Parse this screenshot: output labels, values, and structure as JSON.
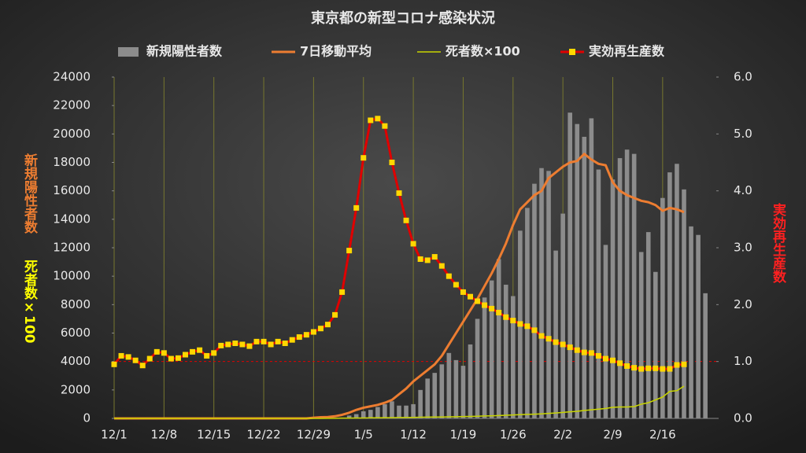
{
  "chart_data": {
    "type": "combo",
    "title": "東京都の新型コロナ感染状況",
    "ylabels": [
      "新規陽性者数",
      "死者数×100"
    ],
    "y2label": "実効再生産数",
    "categories": [
      "12/1",
      null,
      null,
      null,
      null,
      null,
      null,
      "12/8",
      null,
      null,
      null,
      null,
      null,
      null,
      "12/15",
      null,
      null,
      null,
      null,
      null,
      null,
      "12/22",
      null,
      null,
      null,
      null,
      null,
      null,
      "12/29",
      null,
      null,
      null,
      null,
      null,
      null,
      "1/5",
      null,
      null,
      null,
      null,
      null,
      null,
      "1/12",
      null,
      null,
      null,
      null,
      null,
      null,
      "1/19",
      null,
      null,
      null,
      null,
      null,
      null,
      "1/26",
      null,
      null,
      null,
      null,
      null,
      null,
      "2/2",
      null,
      null,
      null,
      null,
      null,
      null,
      "2/9",
      null,
      null,
      null,
      null,
      null,
      null,
      "2/16",
      null,
      null,
      null,
      null,
      null,
      null
    ],
    "ylim": [
      0,
      24000
    ],
    "yticks": [
      0,
      2000,
      4000,
      6000,
      8000,
      10000,
      12000,
      14000,
      16000,
      18000,
      20000,
      22000,
      24000
    ],
    "y2lim": [
      0,
      6
    ],
    "y2ticks": [
      {
        "value": 0,
        "label": "0.0"
      },
      {
        "value": 1,
        "label": "1.0"
      },
      {
        "value": 2,
        "label": "2.0"
      },
      {
        "value": 3,
        "label": "3.0"
      },
      {
        "value": 4,
        "label": "4.0"
      },
      {
        "value": 5,
        "label": "5.0"
      },
      {
        "value": 6,
        "label": "6.0"
      }
    ],
    "y2_reference": 1,
    "x_grid": true,
    "series": [
      {
        "name": "新規陽性者数",
        "kind": "bar",
        "color": "#8c8c8c",
        "values": [
          0,
          0,
          0,
          0,
          0,
          0,
          0,
          0,
          0,
          0,
          0,
          0,
          0,
          0,
          0,
          0,
          0,
          0,
          0,
          0,
          0,
          0,
          0,
          0,
          0,
          0,
          0,
          0,
          0,
          0,
          0,
          0,
          0,
          200,
          300,
          500,
          600,
          800,
          1000,
          1200,
          900,
          900,
          1000,
          2000,
          2800,
          3200,
          3800,
          4600,
          4100,
          3700,
          5200,
          7000,
          8500,
          9700,
          11200,
          9400,
          8600,
          13200,
          14800,
          16500,
          17600,
          17400,
          11800,
          14400,
          21500,
          20700,
          19800,
          21100,
          17500,
          12200,
          16800,
          18300,
          18900,
          18600,
          11700,
          13100,
          10300,
          15500,
          17300,
          17900,
          16100,
          13500,
          12900,
          8800
        ]
      },
      {
        "name": "7日移動平均",
        "kind": "line",
        "color": "#ed7d31",
        "values": [
          0,
          0,
          0,
          0,
          0,
          0,
          0,
          0,
          0,
          0,
          0,
          0,
          0,
          0,
          0,
          0,
          0,
          0,
          0,
          0,
          0,
          0,
          0,
          0,
          0,
          0,
          0,
          0,
          50,
          80,
          100,
          150,
          250,
          400,
          600,
          750,
          850,
          950,
          1100,
          1300,
          1700,
          2100,
          2600,
          3000,
          3400,
          3800,
          4400,
          5200,
          6000,
          6800,
          7600,
          8400,
          9300,
          10200,
          11200,
          12300,
          13600,
          14700,
          15200,
          15700,
          16000,
          16900,
          17300,
          17700,
          18000,
          18100,
          18600,
          18200,
          17900,
          17800,
          16600,
          16000,
          15700,
          15500,
          15300,
          15200,
          15000,
          14600,
          14800,
          14700,
          14500,
          null,
          null,
          null
        ]
      },
      {
        "name": "死者数×100",
        "kind": "line",
        "color": "#c8d400",
        "values": [
          0,
          0,
          0,
          0,
          0,
          0,
          0,
          0,
          0,
          0,
          0,
          0,
          0,
          0,
          0,
          0,
          0,
          0,
          0,
          0,
          0,
          0,
          0,
          0,
          0,
          0,
          0,
          0,
          0,
          0,
          10,
          10,
          20,
          20,
          30,
          30,
          40,
          40,
          50,
          50,
          60,
          60,
          70,
          80,
          90,
          100,
          100,
          110,
          120,
          130,
          140,
          150,
          170,
          180,
          200,
          220,
          240,
          260,
          280,
          300,
          320,
          350,
          380,
          420,
          460,
          500,
          560,
          600,
          650,
          700,
          780,
          800,
          800,
          830,
          1000,
          1100,
          1300,
          1500,
          1900,
          1950,
          2270,
          null,
          null,
          null
        ]
      },
      {
        "name": "実効再生産数",
        "kind": "marker-line",
        "axis": "y2",
        "color": "#e00000",
        "marker_color": "#ffd700",
        "values": [
          0.95,
          1.1,
          1.08,
          1.02,
          0.93,
          1.05,
          1.17,
          1.15,
          1.05,
          1.06,
          1.12,
          1.17,
          1.2,
          1.1,
          1.15,
          1.28,
          1.3,
          1.32,
          1.3,
          1.27,
          1.35,
          1.35,
          1.3,
          1.35,
          1.32,
          1.38,
          1.43,
          1.47,
          1.52,
          1.58,
          1.65,
          1.82,
          2.22,
          2.95,
          3.7,
          4.58,
          5.24,
          5.27,
          5.14,
          4.5,
          3.96,
          3.48,
          3.07,
          2.8,
          2.78,
          2.84,
          2.68,
          2.5,
          2.35,
          2.22,
          2.14,
          2.06,
          1.99,
          1.93,
          1.86,
          1.78,
          1.72,
          1.66,
          1.62,
          1.55,
          1.45,
          1.4,
          1.34,
          1.3,
          1.25,
          1.2,
          1.16,
          1.15,
          1.1,
          1.05,
          1.02,
          0.97,
          0.92,
          0.89,
          0.87,
          0.88,
          0.88,
          0.87,
          0.87,
          0.94,
          0.95,
          null,
          null,
          null
        ]
      }
    ]
  }
}
